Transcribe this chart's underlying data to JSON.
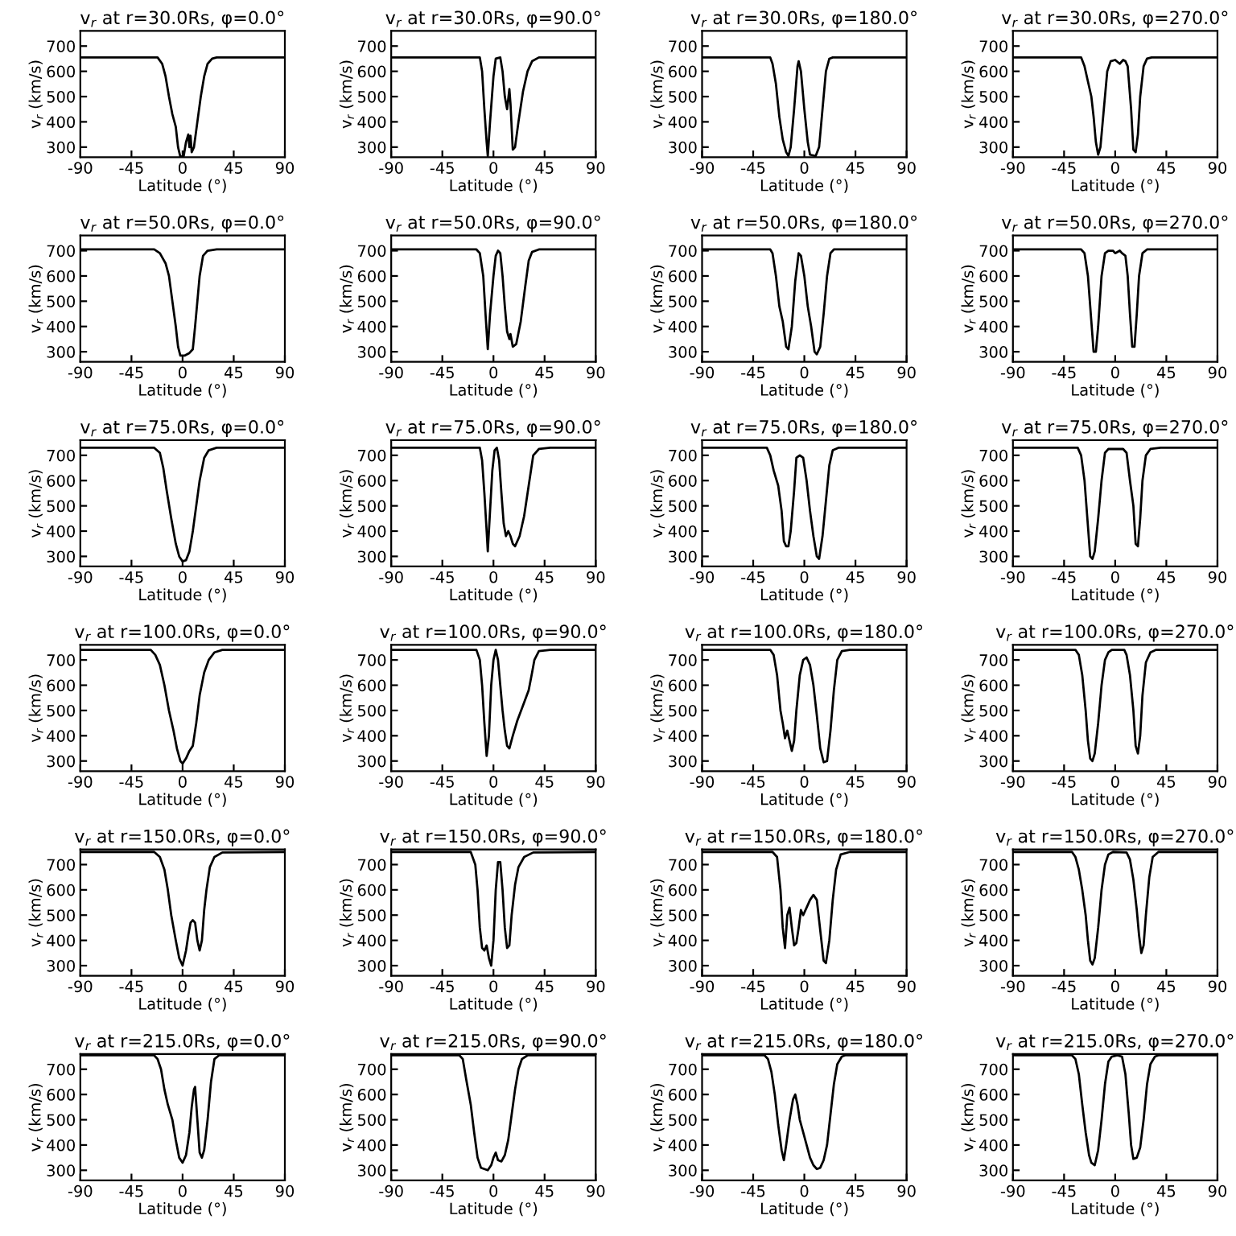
{
  "chart_data": [
    {
      "type": "line",
      "title": "v$_{r}$ at r=30.0Rs, φ=0.0°",
      "xlabel": "Latitude (°)",
      "ylabel": "v$_{r}$ (km/s)",
      "xlim": [
        -90,
        90
      ],
      "ylim": [
        260,
        760
      ],
      "xticks": [
        -90,
        -45,
        0,
        45,
        90
      ],
      "yticks": [
        300,
        400,
        500,
        600,
        700
      ],
      "series": [
        {
          "color": "#000000",
          "x": [
            -90,
            -22,
            -18,
            -15,
            -12,
            -9,
            -6,
            -4,
            -2,
            1,
            3,
            5,
            6,
            7,
            8,
            10,
            13,
            16,
            19,
            22,
            26,
            30,
            90
          ],
          "values": [
            655,
            655,
            630,
            580,
            500,
            430,
            380,
            300,
            262,
            265,
            320,
            350,
            300,
            345,
            280,
            300,
            400,
            500,
            580,
            630,
            650,
            655,
            655
          ]
        }
      ]
    },
    {
      "type": "line",
      "title": "v$_{r}$ at r=30.0Rs, φ=90.0°",
      "xlabel": "Latitude (°)",
      "ylabel": "v$_{r}$ (km/s)",
      "xlim": [
        -90,
        90
      ],
      "ylim": [
        260,
        760
      ],
      "xticks": [
        -90,
        -45,
        0,
        45,
        90
      ],
      "yticks": [
        300,
        400,
        500,
        600,
        700
      ],
      "series": [
        {
          "color": "#000000",
          "x": [
            -90,
            -12,
            -10,
            -8,
            -6,
            -5,
            -3,
            0,
            2,
            6,
            8,
            10,
            12,
            14,
            15,
            17,
            19,
            22,
            26,
            30,
            34,
            40,
            90
          ],
          "values": [
            655,
            655,
            600,
            450,
            320,
            265,
            400,
            580,
            650,
            655,
            600,
            500,
            450,
            530,
            470,
            290,
            300,
            400,
            520,
            600,
            640,
            655,
            655
          ]
        }
      ]
    },
    {
      "type": "line",
      "title": "v$_{r}$ at r=30.0Rs, φ=180.0°",
      "xlabel": "Latitude (°)",
      "ylabel": "v$_{r}$ (km/s)",
      "xlim": [
        -90,
        90
      ],
      "ylim": [
        260,
        760
      ],
      "xticks": [
        -90,
        -45,
        0,
        45,
        90
      ],
      "yticks": [
        300,
        400,
        500,
        600,
        700
      ],
      "series": [
        {
          "color": "#000000",
          "x": [
            -90,
            -30,
            -28,
            -25,
            -22,
            -19,
            -16,
            -14,
            -12,
            -9,
            -6,
            -5,
            -3,
            0,
            3,
            5,
            10,
            13,
            16,
            19,
            22,
            25,
            90
          ],
          "values": [
            655,
            655,
            630,
            550,
            420,
            330,
            280,
            265,
            300,
            450,
            620,
            640,
            600,
            450,
            320,
            270,
            265,
            300,
            450,
            600,
            650,
            655,
            655
          ]
        }
      ]
    },
    {
      "type": "line",
      "title": "v$_{r}$ at r=30.0Rs, φ=270.0°",
      "xlabel": "Latitude (°)",
      "ylabel": "v$_{r}$ (km/s)",
      "xlim": [
        -90,
        90
      ],
      "ylim": [
        260,
        760
      ],
      "xticks": [
        -90,
        -45,
        0,
        45,
        90
      ],
      "yticks": [
        300,
        400,
        500,
        600,
        700
      ],
      "series": [
        {
          "color": "#000000",
          "x": [
            -90,
            -30,
            -27,
            -24,
            -21,
            -19,
            -17,
            -15,
            -13,
            -10,
            -7,
            -4,
            0,
            4,
            7,
            9,
            11,
            14,
            16,
            18,
            20,
            22,
            25,
            28,
            32,
            90
          ],
          "values": [
            655,
            655,
            620,
            560,
            500,
            420,
            320,
            270,
            300,
            450,
            600,
            640,
            645,
            630,
            645,
            640,
            620,
            450,
            290,
            280,
            350,
            500,
            620,
            650,
            655,
            655
          ]
        }
      ]
    },
    {
      "type": "line",
      "title": "v$_{r}$ at r=50.0Rs, φ=0.0°",
      "xlabel": "Latitude (°)",
      "ylabel": "v$_{r}$ (km/s)",
      "xlim": [
        -90,
        90
      ],
      "ylim": [
        260,
        760
      ],
      "xticks": [
        -90,
        -45,
        0,
        45,
        90
      ],
      "yticks": [
        300,
        400,
        500,
        600,
        700
      ],
      "series": [
        {
          "color": "#000000",
          "x": [
            -90,
            -25,
            -20,
            -15,
            -12,
            -9,
            -6,
            -4,
            -2,
            2,
            6,
            9,
            11,
            13,
            15,
            18,
            22,
            30,
            90
          ],
          "values": [
            705,
            705,
            690,
            650,
            600,
            500,
            400,
            320,
            285,
            285,
            295,
            310,
            400,
            500,
            600,
            680,
            700,
            705,
            705
          ]
        }
      ]
    },
    {
      "type": "line",
      "title": "v$_{r}$ at r=50.0Rs, φ=90.0°",
      "xlabel": "Latitude (°)",
      "ylabel": "v$_{r}$ (km/s)",
      "xlim": [
        -90,
        90
      ],
      "ylim": [
        260,
        760
      ],
      "xticks": [
        -90,
        -45,
        0,
        45,
        90
      ],
      "yticks": [
        300,
        400,
        500,
        600,
        700
      ],
      "series": [
        {
          "color": "#000000",
          "x": [
            -90,
            -15,
            -12,
            -9,
            -7,
            -5,
            -3,
            0,
            2,
            4,
            6,
            8,
            10,
            12,
            14,
            15,
            17,
            20,
            24,
            28,
            31,
            34,
            40,
            90
          ],
          "values": [
            705,
            705,
            690,
            600,
            450,
            310,
            450,
            600,
            680,
            700,
            690,
            600,
            480,
            380,
            350,
            370,
            320,
            330,
            420,
            560,
            660,
            695,
            705,
            705
          ]
        }
      ]
    },
    {
      "type": "line",
      "title": "v$_{r}$ at r=50.0Rs, φ=180.0°",
      "xlabel": "Latitude (°)",
      "ylabel": "v$_{r}$ (km/s)",
      "xlim": [
        -90,
        90
      ],
      "ylim": [
        260,
        760
      ],
      "xticks": [
        -90,
        -45,
        0,
        45,
        90
      ],
      "yticks": [
        300,
        400,
        500,
        600,
        700
      ],
      "series": [
        {
          "color": "#000000",
          "x": [
            -90,
            -30,
            -28,
            -25,
            -22,
            -19,
            -16,
            -14,
            -11,
            -8,
            -5,
            -3,
            0,
            3,
            6,
            9,
            11,
            14,
            17,
            20,
            23,
            26,
            90
          ],
          "values": [
            705,
            705,
            690,
            600,
            480,
            420,
            320,
            310,
            400,
            580,
            690,
            680,
            600,
            480,
            400,
            300,
            290,
            320,
            450,
            600,
            690,
            705,
            705
          ]
        }
      ]
    },
    {
      "type": "line",
      "title": "v$_{r}$ at r=50.0Rs, φ=270.0°",
      "xlabel": "Latitude (°)",
      "ylabel": "v$_{r}$ (km/s)",
      "xlim": [
        -90,
        90
      ],
      "ylim": [
        260,
        760
      ],
      "xticks": [
        -90,
        -45,
        0,
        45,
        90
      ],
      "yticks": [
        300,
        400,
        500,
        600,
        700
      ],
      "series": [
        {
          "color": "#000000",
          "x": [
            -90,
            -30,
            -27,
            -24,
            -21,
            -19,
            -17,
            -15,
            -12,
            -9,
            -6,
            -2,
            0,
            4,
            6,
            9,
            11,
            13,
            15,
            17,
            19,
            21,
            24,
            28,
            90
          ],
          "values": [
            705,
            705,
            690,
            600,
            420,
            300,
            300,
            400,
            600,
            690,
            700,
            700,
            690,
            700,
            690,
            680,
            600,
            450,
            320,
            320,
            450,
            600,
            690,
            705,
            705
          ]
        }
      ]
    },
    {
      "type": "line",
      "title": "v$_{r}$ at r=75.0Rs, φ=0.0°",
      "xlabel": "Latitude (°)",
      "ylabel": "v$_{r}$ (km/s)",
      "xlim": [
        -90,
        90
      ],
      "ylim": [
        260,
        760
      ],
      "xticks": [
        -90,
        -45,
        0,
        45,
        90
      ],
      "yticks": [
        300,
        400,
        500,
        600,
        700
      ],
      "series": [
        {
          "color": "#000000",
          "x": [
            -90,
            -25,
            -20,
            -17,
            -14,
            -10,
            -6,
            -3,
            0,
            3,
            6,
            9,
            12,
            15,
            19,
            23,
            30,
            90
          ],
          "values": [
            730,
            730,
            710,
            650,
            560,
            450,
            350,
            300,
            280,
            285,
            320,
            400,
            500,
            600,
            690,
            720,
            730,
            730
          ]
        }
      ]
    },
    {
      "type": "line",
      "title": "v$_{r}$ at r=75.0Rs, φ=90.0°",
      "xlabel": "Latitude (°)",
      "ylabel": "v$_{r}$ (km/s)",
      "xlim": [
        -90,
        90
      ],
      "ylim": [
        260,
        760
      ],
      "xticks": [
        -90,
        -45,
        0,
        45,
        90
      ],
      "yticks": [
        300,
        400,
        500,
        600,
        700
      ],
      "series": [
        {
          "color": "#000000",
          "x": [
            -90,
            -12,
            -10,
            -8,
            -6,
            -5,
            -3,
            -1,
            1,
            3,
            5,
            7,
            9,
            11,
            13,
            15,
            17,
            19,
            23,
            27,
            31,
            35,
            40,
            50,
            90
          ],
          "values": [
            730,
            730,
            680,
            550,
            400,
            320,
            480,
            640,
            720,
            730,
            680,
            550,
            430,
            380,
            400,
            380,
            350,
            340,
            380,
            460,
            580,
            700,
            725,
            730,
            730
          ]
        }
      ]
    },
    {
      "type": "line",
      "title": "v$_{r}$ at r=75.0Rs, φ=180.0°",
      "xlabel": "Latitude (°)",
      "ylabel": "v$_{r}$ (km/s)",
      "xlim": [
        -90,
        90
      ],
      "ylim": [
        260,
        760
      ],
      "xticks": [
        -90,
        -45,
        0,
        45,
        90
      ],
      "yticks": [
        300,
        400,
        500,
        600,
        700
      ],
      "series": [
        {
          "color": "#000000",
          "x": [
            -90,
            -33,
            -30,
            -27,
            -23,
            -20,
            -18,
            -16,
            -14,
            -12,
            -9,
            -7,
            -4,
            -1,
            2,
            5,
            8,
            11,
            13,
            16,
            19,
            22,
            25,
            30,
            90
          ],
          "values": [
            730,
            730,
            700,
            640,
            580,
            480,
            360,
            340,
            340,
            400,
            560,
            690,
            700,
            690,
            600,
            480,
            380,
            300,
            290,
            380,
            520,
            660,
            720,
            730,
            730
          ]
        }
      ]
    },
    {
      "type": "line",
      "title": "v$_{r}$ at r=75.0Rs, φ=270.0°",
      "xlabel": "Latitude (°)",
      "ylabel": "v$_{r}$ (km/s)",
      "xlim": [
        -90,
        90
      ],
      "ylim": [
        260,
        760
      ],
      "xticks": [
        -90,
        -45,
        0,
        45,
        90
      ],
      "yticks": [
        300,
        400,
        500,
        600,
        700
      ],
      "series": [
        {
          "color": "#000000",
          "x": [
            -90,
            -33,
            -30,
            -27,
            -24,
            -22,
            -20,
            -18,
            -15,
            -12,
            -9,
            -6,
            7,
            10,
            13,
            16,
            18,
            20,
            22,
            24,
            27,
            31,
            40,
            90
          ],
          "values": [
            730,
            730,
            700,
            600,
            420,
            300,
            290,
            320,
            450,
            600,
            710,
            725,
            725,
            710,
            600,
            500,
            350,
            340,
            450,
            600,
            700,
            725,
            730,
            730
          ]
        }
      ]
    },
    {
      "type": "line",
      "title": "v$_{r}$ at r=100.0Rs, φ=0.0°",
      "xlabel": "Latitude (°)",
      "ylabel": "v$_{r}$ (km/s)",
      "xlim": [
        -90,
        90
      ],
      "ylim": [
        260,
        760
      ],
      "xticks": [
        -90,
        -45,
        0,
        45,
        90
      ],
      "yticks": [
        300,
        400,
        500,
        600,
        700
      ],
      "series": [
        {
          "color": "#000000",
          "x": [
            -90,
            -28,
            -24,
            -20,
            -16,
            -12,
            -8,
            -5,
            -2,
            0,
            3,
            6,
            9,
            12,
            15,
            19,
            23,
            28,
            35,
            90
          ],
          "values": [
            740,
            740,
            720,
            680,
            600,
            500,
            420,
            350,
            300,
            290,
            310,
            340,
            360,
            450,
            560,
            650,
            700,
            730,
            740,
            740
          ]
        }
      ]
    },
    {
      "type": "line",
      "title": "v$_{r}$ at r=100.0Rs, φ=90.0°",
      "xlabel": "Latitude (°)",
      "ylabel": "v$_{r}$ (km/s)",
      "xlim": [
        -90,
        90
      ],
      "ylim": [
        260,
        760
      ],
      "xticks": [
        -90,
        -45,
        0,
        45,
        90
      ],
      "yticks": [
        300,
        400,
        500,
        600,
        700
      ],
      "series": [
        {
          "color": "#000000",
          "x": [
            -90,
            -15,
            -12,
            -10,
            -8,
            -6,
            -4,
            -2,
            0,
            2,
            4,
            6,
            8,
            10,
            12,
            14,
            17,
            21,
            26,
            31,
            34,
            36,
            40,
            50,
            90
          ],
          "values": [
            740,
            740,
            700,
            600,
            450,
            320,
            400,
            600,
            700,
            740,
            700,
            600,
            500,
            420,
            360,
            350,
            400,
            460,
            520,
            580,
            650,
            700,
            735,
            740,
            740
          ]
        }
      ]
    },
    {
      "type": "line",
      "title": "v$_{r}$ at r=100.0Rs, φ=180.0°",
      "xlabel": "Latitude (°)",
      "ylabel": "v$_{r}$ (km/s)",
      "xlim": [
        -90,
        90
      ],
      "ylim": [
        260,
        760
      ],
      "xticks": [
        -90,
        -45,
        0,
        45,
        90
      ],
      "yticks": [
        300,
        400,
        500,
        600,
        700
      ],
      "series": [
        {
          "color": "#000000",
          "x": [
            -90,
            -30,
            -27,
            -24,
            -21,
            -19,
            -17,
            -15,
            -13,
            -11,
            -9,
            -7,
            -4,
            -1,
            2,
            5,
            8,
            11,
            14,
            17,
            20,
            23,
            26,
            29,
            33,
            40,
            90
          ],
          "values": [
            740,
            740,
            720,
            640,
            500,
            450,
            390,
            420,
            380,
            340,
            380,
            500,
            640,
            700,
            710,
            680,
            600,
            480,
            350,
            295,
            300,
            420,
            580,
            700,
            735,
            740,
            740
          ]
        }
      ]
    },
    {
      "type": "line",
      "title": "v$_{r}$ at r=100.0Rs, φ=270.0°",
      "xlabel": "Latitude (°)",
      "ylabel": "v$_{r}$ (km/s)",
      "xlim": [
        -90,
        90
      ],
      "ylim": [
        260,
        760
      ],
      "xticks": [
        -90,
        -45,
        0,
        45,
        90
      ],
      "yticks": [
        300,
        400,
        500,
        600,
        700
      ],
      "series": [
        {
          "color": "#000000",
          "x": [
            -90,
            -35,
            -32,
            -29,
            -26,
            -24,
            -22,
            -20,
            -18,
            -15,
            -12,
            -9,
            -6,
            -3,
            8,
            10,
            13,
            16,
            18,
            20,
            22,
            24,
            27,
            31,
            36,
            90
          ],
          "values": [
            740,
            740,
            720,
            640,
            500,
            380,
            310,
            300,
            330,
            450,
            600,
            700,
            730,
            740,
            740,
            720,
            640,
            500,
            360,
            330,
            400,
            560,
            690,
            730,
            740,
            740
          ]
        }
      ]
    },
    {
      "type": "line",
      "title": "v$_{r}$ at r=150.0Rs, φ=0.0°",
      "xlabel": "Latitude (°)",
      "ylabel": "v$_{r}$ (km/s)",
      "xlim": [
        -90,
        90
      ],
      "ylim": [
        260,
        760
      ],
      "xticks": [
        -90,
        -45,
        0,
        45,
        90
      ],
      "yticks": [
        300,
        400,
        500,
        600,
        700
      ],
      "series": [
        {
          "color": "#000000",
          "x": [
            -90,
            -25,
            -20,
            -16,
            -13,
            -10,
            -6,
            -3,
            0,
            3,
            5,
            7,
            9,
            11,
            13,
            15,
            17,
            19,
            21,
            24,
            28,
            35,
            90
          ],
          "values": [
            750,
            750,
            730,
            680,
            600,
            500,
            400,
            330,
            300,
            360,
            420,
            470,
            480,
            470,
            400,
            360,
            400,
            520,
            600,
            690,
            730,
            748,
            750
          ]
        }
      ]
    },
    {
      "type": "line",
      "title": "v$_{r}$ at r=150.0Rs, φ=90.0°",
      "xlabel": "Latitude (°)",
      "ylabel": "v$_{r}$ (km/s)",
      "xlim": [
        -90,
        90
      ],
      "ylim": [
        260,
        760
      ],
      "xticks": [
        -90,
        -45,
        0,
        45,
        90
      ],
      "yticks": [
        300,
        400,
        500,
        600,
        700
      ],
      "series": [
        {
          "color": "#000000",
          "x": [
            -90,
            -20,
            -16,
            -14,
            -12,
            -10,
            -8,
            -6,
            -4,
            -2,
            0,
            2,
            4,
            6,
            8,
            10,
            12,
            14,
            16,
            19,
            22,
            27,
            35,
            90
          ],
          "values": [
            750,
            750,
            700,
            600,
            450,
            370,
            360,
            380,
            330,
            300,
            400,
            600,
            710,
            710,
            600,
            450,
            370,
            380,
            500,
            620,
            690,
            730,
            748,
            750
          ]
        }
      ]
    },
    {
      "type": "line",
      "title": "v$_{r}$ at r=150.0Rs, φ=180.0°",
      "xlabel": "Latitude (°)",
      "ylabel": "v$_{r}$ (km/s)",
      "xlim": [
        -90,
        90
      ],
      "ylim": [
        260,
        760
      ],
      "xticks": [
        -90,
        -45,
        0,
        45,
        90
      ],
      "yticks": [
        300,
        400,
        500,
        600,
        700
      ],
      "series": [
        {
          "color": "#000000",
          "x": [
            -90,
            -28,
            -24,
            -21,
            -19,
            -17,
            -15,
            -13,
            -11,
            -9,
            -7,
            -5,
            -3,
            -1,
            2,
            5,
            8,
            11,
            13,
            15,
            17,
            19,
            22,
            25,
            28,
            32,
            40,
            90
          ],
          "values": [
            750,
            750,
            730,
            600,
            450,
            370,
            500,
            530,
            450,
            380,
            390,
            450,
            520,
            500,
            530,
            560,
            580,
            560,
            480,
            400,
            320,
            310,
            400,
            560,
            680,
            740,
            750,
            750
          ]
        }
      ]
    },
    {
      "type": "line",
      "title": "v$_{r}$ at r=150.0Rs, φ=270.0°",
      "xlabel": "Latitude (°)",
      "ylabel": "v$_{r}$ (km/s)",
      "xlim": [
        -90,
        90
      ],
      "ylim": [
        260,
        760
      ],
      "xticks": [
        -90,
        -45,
        0,
        45,
        90
      ],
      "yticks": [
        300,
        400,
        500,
        600,
        700
      ],
      "series": [
        {
          "color": "#000000",
          "x": [
            -90,
            -38,
            -35,
            -32,
            -29,
            -26,
            -24,
            -22,
            -20,
            -18,
            -15,
            -12,
            -9,
            -6,
            -2,
            10,
            13,
            16,
            19,
            21,
            23,
            25,
            27,
            30,
            33,
            38,
            90
          ],
          "values": [
            750,
            750,
            730,
            680,
            600,
            500,
            400,
            320,
            305,
            330,
            450,
            600,
            700,
            740,
            750,
            748,
            720,
            640,
            520,
            420,
            350,
            380,
            500,
            650,
            730,
            750,
            750
          ]
        }
      ]
    },
    {
      "type": "line",
      "title": "v$_{r}$ at r=215.0Rs, φ=0.0°",
      "xlabel": "Latitude (°)",
      "ylabel": "v$_{r}$ (km/s)",
      "xlim": [
        -90,
        90
      ],
      "ylim": [
        260,
        760
      ],
      "xticks": [
        -90,
        -45,
        0,
        45,
        90
      ],
      "yticks": [
        300,
        400,
        500,
        600,
        700
      ],
      "series": [
        {
          "color": "#000000",
          "x": [
            -90,
            -25,
            -22,
            -19,
            -16,
            -13,
            -9,
            -6,
            -3,
            0,
            3,
            6,
            8,
            10,
            11,
            13,
            15,
            17,
            19,
            22,
            25,
            28,
            32,
            90
          ],
          "values": [
            755,
            755,
            740,
            700,
            620,
            560,
            500,
            420,
            350,
            330,
            360,
            450,
            550,
            620,
            630,
            500,
            370,
            350,
            380,
            500,
            650,
            740,
            755,
            755
          ]
        }
      ]
    },
    {
      "type": "line",
      "title": "v$_{r}$ at r=215.0Rs, φ=90.0°",
      "xlabel": "Latitude (°)",
      "ylabel": "v$_{r}$ (km/s)",
      "xlim": [
        -90,
        90
      ],
      "ylim": [
        260,
        760
      ],
      "xticks": [
        -90,
        -45,
        0,
        45,
        90
      ],
      "yticks": [
        300,
        400,
        500,
        600,
        700
      ],
      "series": [
        {
          "color": "#000000",
          "x": [
            -90,
            -30,
            -27,
            -24,
            -20,
            -17,
            -14,
            -11,
            -8,
            -5,
            -2,
            0,
            2,
            4,
            7,
            10,
            13,
            16,
            19,
            22,
            25,
            30,
            90
          ],
          "values": [
            755,
            755,
            740,
            660,
            560,
            450,
            350,
            310,
            305,
            300,
            320,
            350,
            370,
            340,
            335,
            360,
            420,
            520,
            620,
            700,
            740,
            755,
            755
          ]
        }
      ]
    },
    {
      "type": "line",
      "title": "v$_{r}$ at r=215.0Rs, φ=180.0°",
      "xlabel": "Latitude (°)",
      "ylabel": "v$_{r}$ (km/s)",
      "xlim": [
        -90,
        90
      ],
      "ylim": [
        260,
        760
      ],
      "xticks": [
        -90,
        -45,
        0,
        45,
        90
      ],
      "yticks": [
        300,
        400,
        500,
        600,
        700
      ],
      "series": [
        {
          "color": "#000000",
          "x": [
            -90,
            -35,
            -32,
            -29,
            -26,
            -23,
            -20,
            -18,
            -16,
            -13,
            -10,
            -8,
            -6,
            -4,
            -1,
            2,
            5,
            8,
            11,
            14,
            17,
            20,
            23,
            26,
            29,
            33,
            36,
            90
          ],
          "values": [
            755,
            755,
            740,
            690,
            600,
            480,
            380,
            340,
            400,
            500,
            580,
            600,
            560,
            500,
            450,
            400,
            350,
            320,
            305,
            310,
            340,
            400,
            520,
            640,
            720,
            750,
            755,
            755
          ]
        }
      ]
    },
    {
      "type": "line",
      "title": "v$_{r}$ at r=215.0Rs, φ=270.0°",
      "xlabel": "Latitude (°)",
      "ylabel": "v$_{r}$ (km/s)",
      "xlim": [
        -90,
        90
      ],
      "ylim": [
        260,
        760
      ],
      "xticks": [
        -90,
        -45,
        0,
        45,
        90
      ],
      "yticks": [
        300,
        400,
        500,
        600,
        700
      ],
      "series": [
        {
          "color": "#000000",
          "x": [
            -90,
            -38,
            -35,
            -32,
            -29,
            -26,
            -23,
            -21,
            -18,
            -15,
            -12,
            -9,
            -6,
            -3,
            2,
            6,
            9,
            12,
            14,
            16,
            19,
            22,
            25,
            28,
            31,
            35,
            38,
            90
          ],
          "values": [
            755,
            755,
            740,
            680,
            560,
            450,
            360,
            330,
            320,
            380,
            500,
            640,
            730,
            750,
            755,
            750,
            680,
            520,
            400,
            345,
            350,
            390,
            500,
            640,
            720,
            750,
            755,
            755
          ]
        }
      ]
    }
  ]
}
